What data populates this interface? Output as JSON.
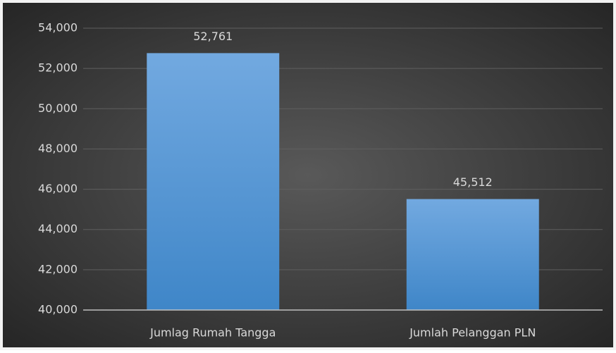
{
  "chart_data": {
    "type": "bar",
    "categories": [
      "Jumlag Rumah Tangga",
      "Jumlah Pelanggan PLN"
    ],
    "values": [
      52761,
      45512
    ],
    "value_labels": [
      "52,761",
      "45,512"
    ],
    "color": "#5b9bd5",
    "ylim": [
      40000,
      54000
    ],
    "yticks": [
      {
        "value": 40000,
        "label": "40,000"
      },
      {
        "value": 42000,
        "label": "42,000"
      },
      {
        "value": 44000,
        "label": "44,000"
      },
      {
        "value": 46000,
        "label": "46,000"
      },
      {
        "value": 48000,
        "label": "48,000"
      },
      {
        "value": 50000,
        "label": "50,000"
      },
      {
        "value": 52000,
        "label": "52,000"
      },
      {
        "value": 54000,
        "label": "54,000"
      }
    ],
    "grid": true
  }
}
